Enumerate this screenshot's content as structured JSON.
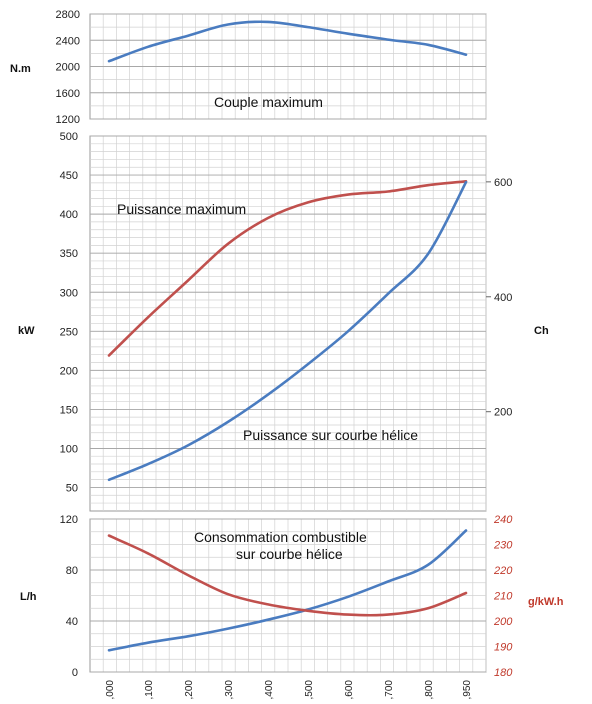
{
  "chart_data": [
    {
      "type": "line",
      "x": [
        "1000",
        "1100",
        "1200",
        "1300",
        "1400",
        "1500",
        "1600",
        "1700",
        "1800",
        "1950"
      ],
      "ylabel": "N.m",
      "ylim": [
        1200,
        2800
      ],
      "yticks": [
        "2800",
        "2400",
        "2000",
        "1600",
        "1200"
      ],
      "annotation": "Couple maximum",
      "series": [
        {
          "values": [
            2080,
            2300,
            2470,
            2640,
            2680,
            2600,
            2500,
            2410,
            2330,
            2180
          ],
          "color": "#4a7cc0"
        }
      ]
    },
    {
      "type": "line",
      "x": [
        "1000",
        "1100",
        "1200",
        "1300",
        "1400",
        "1500",
        "1600",
        "1700",
        "1800",
        "1950"
      ],
      "ylabel": "kW",
      "ylim": [
        20,
        500
      ],
      "yticks": [
        "500",
        "450",
        "400",
        "350",
        "300",
        "250",
        "200",
        "150",
        "100",
        "50"
      ],
      "y2label": "Ch",
      "y2ticks": [
        "600",
        "400",
        "200"
      ],
      "annotations": [
        "Puissance maximum",
        "Puissance sur courbe hélice"
      ],
      "series": [
        {
          "values": [
            219,
            268,
            315,
            362,
            395,
            415,
            425,
            429,
            437,
            442
          ],
          "color": "#c0504d"
        },
        {
          "values": [
            60,
            80,
            104,
            134,
            169,
            208,
            250,
            298,
            349,
            441
          ],
          "color": "#4a7cc0"
        }
      ]
    },
    {
      "type": "line",
      "x": [
        "1000",
        "1100",
        "1200",
        "1300",
        "1400",
        "1500",
        "1600",
        "1700",
        "1800",
        "1950"
      ],
      "ylabel": "L/h",
      "ylim": [
        0,
        120
      ],
      "yticks": [
        "120",
        "80",
        "40",
        "0"
      ],
      "y2label": "g/kW.h",
      "y2lim": [
        180,
        240
      ],
      "y2ticks": [
        "240",
        "230",
        "220",
        "210",
        "200",
        "190",
        "180"
      ],
      "xticks": [
        ",000",
        ",100",
        ",200",
        ",300",
        ",400",
        ",500",
        ",600",
        ",700",
        ",800",
        ",950"
      ],
      "annotation_line1": "Consommation combustible",
      "annotation_line2": "sur courbe hélice",
      "series": [
        {
          "values": [
            17,
            23,
            28,
            34,
            41,
            49,
            59,
            71,
            84,
            111
          ],
          "axis": "left",
          "color": "#4a7cc0"
        },
        {
          "values": [
            233.5,
            226.5,
            218,
            210.5,
            206.5,
            204,
            202.5,
            202.5,
            205,
            211
          ],
          "axis": "right",
          "color": "#c0504d"
        }
      ]
    }
  ]
}
